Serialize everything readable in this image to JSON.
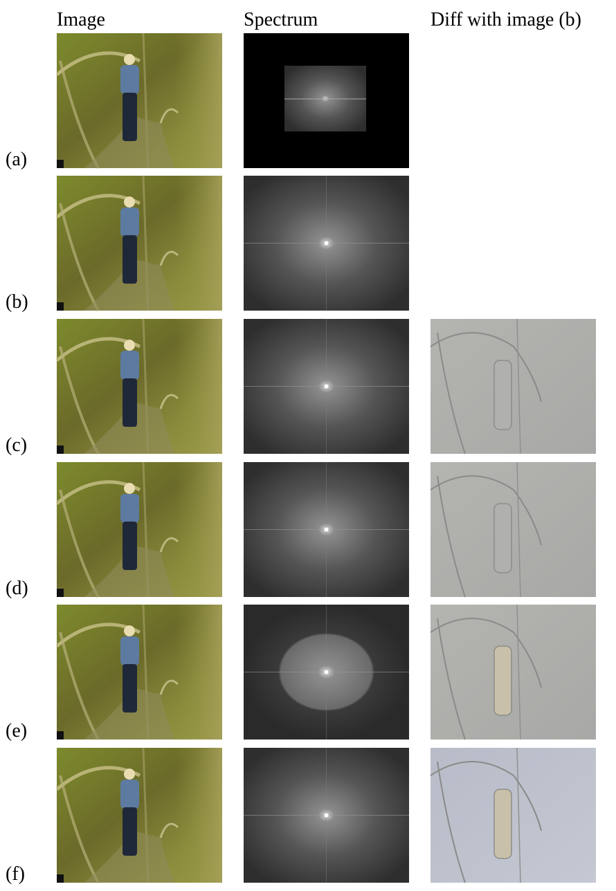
{
  "header": {
    "columns": [
      "Image",
      "Spectrum",
      "Diff with image (b)"
    ]
  },
  "rows": [
    {
      "label": "(a)"
    },
    {
      "label": "(b)"
    },
    {
      "label": "(c)"
    },
    {
      "label": "(d)"
    },
    {
      "label": "(e)"
    },
    {
      "label": "(f)"
    }
  ]
}
